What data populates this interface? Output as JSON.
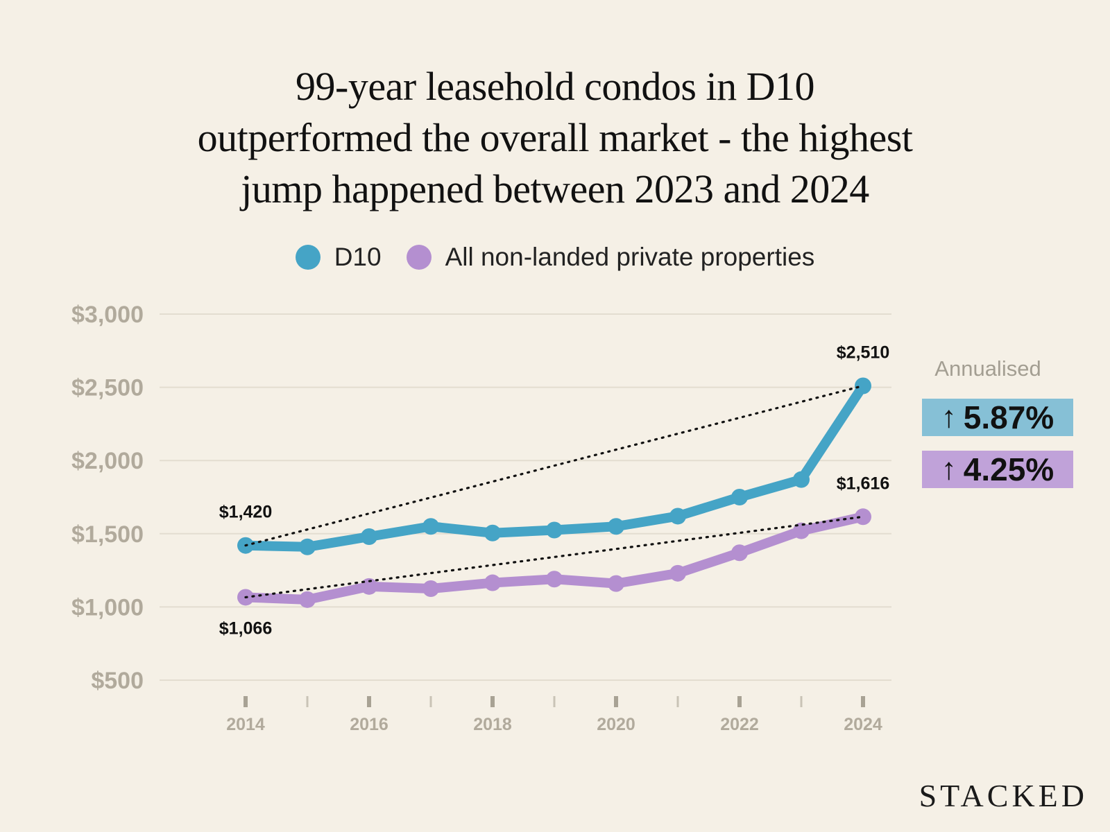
{
  "title_lines": [
    "99-year leasehold condos in D10",
    "outperformed the overall market - the highest",
    "jump happened between 2023 and 2024"
  ],
  "legend": [
    {
      "label": "D10",
      "color": "#45a4c6"
    },
    {
      "label": "All non-landed private properties",
      "color": "#b48fd0"
    }
  ],
  "annualised": {
    "label": "Annualised",
    "items": [
      {
        "arrow": "↑",
        "value": "5.87%",
        "color": "#86c0d6"
      },
      {
        "arrow": "↑",
        "value": "4.25%",
        "color": "#c0a2d9"
      }
    ]
  },
  "brand": "STACKED",
  "chart_data": {
    "type": "line",
    "title": "99-year leasehold condos in D10 outperformed the overall market - the highest jump happened between 2023 and 2024",
    "x": [
      2014,
      2015,
      2016,
      2017,
      2018,
      2019,
      2020,
      2021,
      2022,
      2023,
      2024
    ],
    "xtick_labels": [
      "2014",
      "2016",
      "2018",
      "2020",
      "2022",
      "2024"
    ],
    "xtick_values": [
      2014,
      2016,
      2018,
      2020,
      2022,
      2024
    ],
    "ytick_labels": [
      "$500",
      "$1,000",
      "$1,500",
      "$2,000",
      "$2,500",
      "$3,000"
    ],
    "ytick_values": [
      500,
      1000,
      1500,
      2000,
      2500,
      3000
    ],
    "ylim": [
      500,
      3000
    ],
    "xlim": [
      2014,
      2024
    ],
    "xlabel": "",
    "ylabel": "",
    "grid": true,
    "series": [
      {
        "name": "D10",
        "color": "#45a4c6",
        "values": [
          1420,
          1410,
          1480,
          1550,
          1505,
          1525,
          1550,
          1620,
          1750,
          1870,
          2510
        ]
      },
      {
        "name": "All non-landed private properties",
        "color": "#b48fd0",
        "values": [
          1066,
          1050,
          1140,
          1125,
          1165,
          1190,
          1160,
          1230,
          1370,
          1520,
          1616
        ]
      }
    ],
    "annotations": [
      {
        "series": 0,
        "index": 0,
        "text": "$1,420",
        "position": "above"
      },
      {
        "series": 0,
        "index": 10,
        "text": "$2,510",
        "position": "above"
      },
      {
        "series": 1,
        "index": 0,
        "text": "$1,066",
        "position": "below"
      },
      {
        "series": 1,
        "index": 10,
        "text": "$1,616",
        "position": "above"
      }
    ],
    "trendlines": "dotted lines from first to last point of each series"
  }
}
